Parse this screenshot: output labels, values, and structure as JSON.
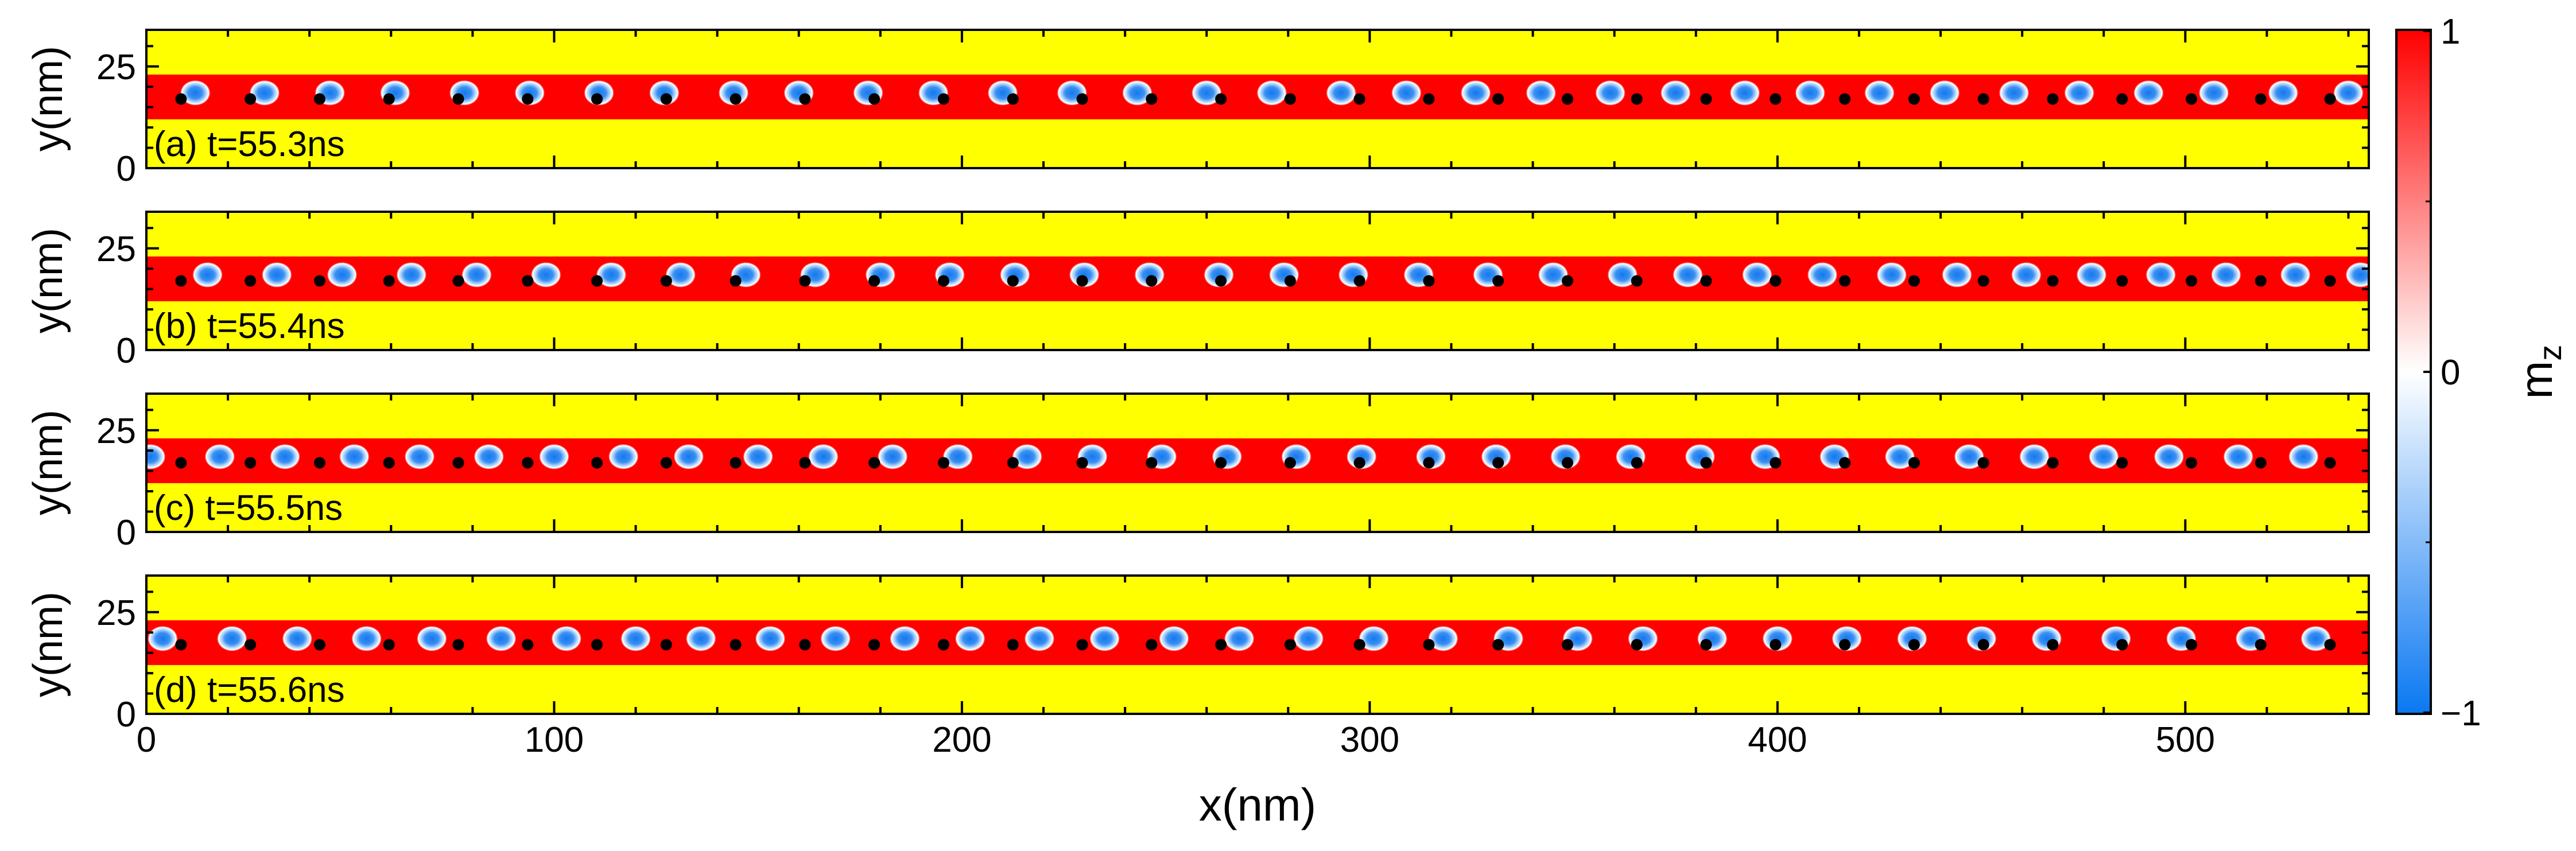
{
  "figure": {
    "xlabel": "x(nm)",
    "ylabel": "y(nm)",
    "colorbar_label_main": "m",
    "colorbar_label_sub": "z"
  },
  "colors": {
    "background": "#ffff00",
    "track": "#ff0000",
    "dot": "#000000",
    "skyrmion_core": "#1e7ff0"
  },
  "colorbar": {
    "min": -1,
    "max": 1,
    "tick_labels": [
      "1",
      "0",
      "−1"
    ],
    "colormap": [
      "#0a78f2",
      "#ffffff",
      "#ff0000"
    ]
  },
  "chart_data": [
    {
      "type": "heatmap",
      "panel": "a",
      "label": "(a) t=55.3ns",
      "xlim": [
        0,
        545
      ],
      "ylim": [
        0,
        34
      ],
      "xticks": [
        0,
        100,
        200,
        300,
        400,
        500
      ],
      "yticks": [
        0,
        25
      ],
      "track_y": [
        12,
        23
      ],
      "pinning_dot_y": 17,
      "pinning_dots_x": [
        8.5,
        25.5,
        42.5,
        59.5,
        76.5,
        93.5,
        110.5,
        127.5,
        144.5,
        161.5,
        178.5,
        195.5,
        212.5,
        229.5,
        246.5,
        263.5,
        280.5,
        297.5,
        314.5,
        331.5,
        348.5,
        365.5,
        382.5,
        399.5,
        416.5,
        433.5,
        450.5,
        467.5,
        484.5,
        501.5,
        518.5,
        535.5
      ],
      "skyrmion_y": 18.5,
      "skyrmions_x": [
        12,
        29,
        45,
        61,
        78,
        94,
        111,
        127,
        144,
        160,
        177,
        193,
        210,
        227,
        243,
        260,
        276,
        293,
        309,
        326,
        342,
        359,
        375,
        392,
        408,
        425,
        441,
        458,
        474,
        491,
        507,
        524,
        540
      ]
    },
    {
      "type": "heatmap",
      "panel": "b",
      "label": "(b) t=55.4ns",
      "xlim": [
        0,
        545
      ],
      "ylim": [
        0,
        34
      ],
      "xticks": [
        0,
        100,
        200,
        300,
        400,
        500
      ],
      "yticks": [
        0,
        25
      ],
      "track_y": [
        12,
        23
      ],
      "pinning_dot_y": 17,
      "pinning_dots_x": [
        8.5,
        25.5,
        42.5,
        59.5,
        76.5,
        93.5,
        110.5,
        127.5,
        144.5,
        161.5,
        178.5,
        195.5,
        212.5,
        229.5,
        246.5,
        263.5,
        280.5,
        297.5,
        314.5,
        331.5,
        348.5,
        365.5,
        382.5,
        399.5,
        416.5,
        433.5,
        450.5,
        467.5,
        484.5,
        501.5,
        518.5,
        535.5
      ],
      "skyrmion_y": 18.5,
      "skyrmions_x": [
        15,
        32,
        48,
        65,
        81,
        98,
        114,
        131,
        147,
        164,
        180,
        197,
        213,
        230,
        246,
        263,
        279,
        296,
        312,
        329,
        345,
        362,
        378,
        395,
        411,
        428,
        444,
        461,
        477,
        494,
        510,
        527,
        543
      ]
    },
    {
      "type": "heatmap",
      "panel": "c",
      "label": "(c) t=55.5ns",
      "xlim": [
        0,
        545
      ],
      "ylim": [
        0,
        34
      ],
      "xticks": [
        0,
        100,
        200,
        300,
        400,
        500
      ],
      "yticks": [
        0,
        25
      ],
      "track_y": [
        12,
        23
      ],
      "pinning_dot_y": 17,
      "pinning_dots_x": [
        8.5,
        25.5,
        42.5,
        59.5,
        76.5,
        93.5,
        110.5,
        127.5,
        144.5,
        161.5,
        178.5,
        195.5,
        212.5,
        229.5,
        246.5,
        263.5,
        280.5,
        297.5,
        314.5,
        331.5,
        348.5,
        365.5,
        382.5,
        399.5,
        416.5,
        433.5,
        450.5,
        467.5,
        484.5,
        501.5,
        518.5,
        535.5
      ],
      "skyrmion_y": 18.5,
      "skyrmions_x": [
        1,
        18,
        34,
        51,
        67,
        84,
        100,
        117,
        133,
        150,
        166,
        183,
        199,
        216,
        232,
        249,
        265,
        282,
        298,
        315,
        331,
        348,
        364,
        381,
        397,
        414,
        430,
        447,
        463,
        480,
        496,
        513,
        529
      ]
    },
    {
      "type": "heatmap",
      "panel": "d",
      "label": "(d) t=55.6ns",
      "xlim": [
        0,
        545
      ],
      "ylim": [
        0,
        34
      ],
      "xticks": [
        0,
        100,
        200,
        300,
        400,
        500
      ],
      "yticks": [
        0,
        25
      ],
      "track_y": [
        12,
        23
      ],
      "pinning_dot_y": 17,
      "pinning_dots_x": [
        8.5,
        25.5,
        42.5,
        59.5,
        76.5,
        93.5,
        110.5,
        127.5,
        144.5,
        161.5,
        178.5,
        195.5,
        212.5,
        229.5,
        246.5,
        263.5,
        280.5,
        297.5,
        314.5,
        331.5,
        348.5,
        365.5,
        382.5,
        399.5,
        416.5,
        433.5,
        450.5,
        467.5,
        484.5,
        501.5,
        518.5,
        535.5
      ],
      "skyrmion_y": 18.5,
      "skyrmions_x": [
        4,
        21,
        37,
        54,
        70,
        87,
        103,
        120,
        136,
        153,
        169,
        186,
        202,
        219,
        235,
        252,
        268,
        285,
        301,
        318,
        334,
        351,
        367,
        384,
        400,
        417,
        433,
        450,
        466,
        483,
        499,
        516,
        532
      ]
    }
  ]
}
